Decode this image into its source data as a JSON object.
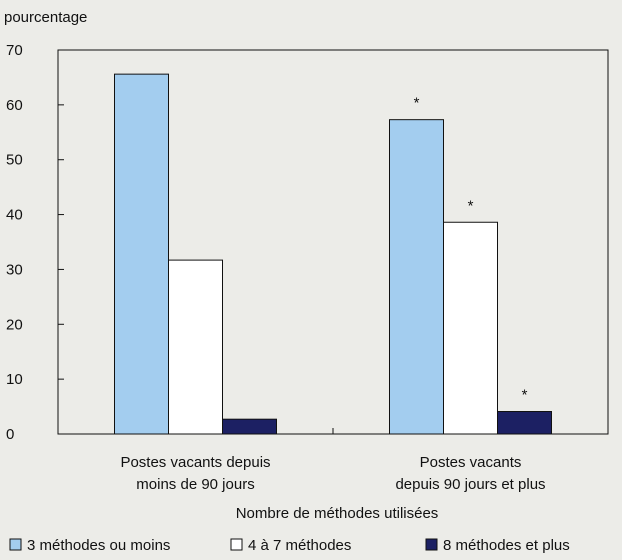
{
  "chart_data": {
    "type": "bar",
    "ylabel": "pourcentage",
    "xlabel": "Nombre de méthodes utilisées",
    "ylim": [
      0,
      70
    ],
    "yticks": [
      0,
      10,
      20,
      30,
      40,
      50,
      60,
      70
    ],
    "grid": false,
    "legend_position": "bottom",
    "categories": [
      [
        "Postes vacants depuis",
        "moins de 90 jours"
      ],
      [
        "Postes vacants",
        "depuis 90 jours et plus"
      ]
    ],
    "series": [
      {
        "name": "3 méthodes ou moins",
        "color": "#a3cdef",
        "values": [
          65.6,
          57.3
        ],
        "flags": [
          "",
          "*"
        ]
      },
      {
        "name": "4 à 7 méthodes",
        "color": "#ffffff",
        "values": [
          31.7,
          38.6
        ],
        "flags": [
          "",
          "*"
        ]
      },
      {
        "name": "8 méthodes et plus",
        "color": "#1c2063",
        "values": [
          2.7,
          4.1
        ],
        "flags": [
          "",
          "*"
        ]
      }
    ]
  }
}
